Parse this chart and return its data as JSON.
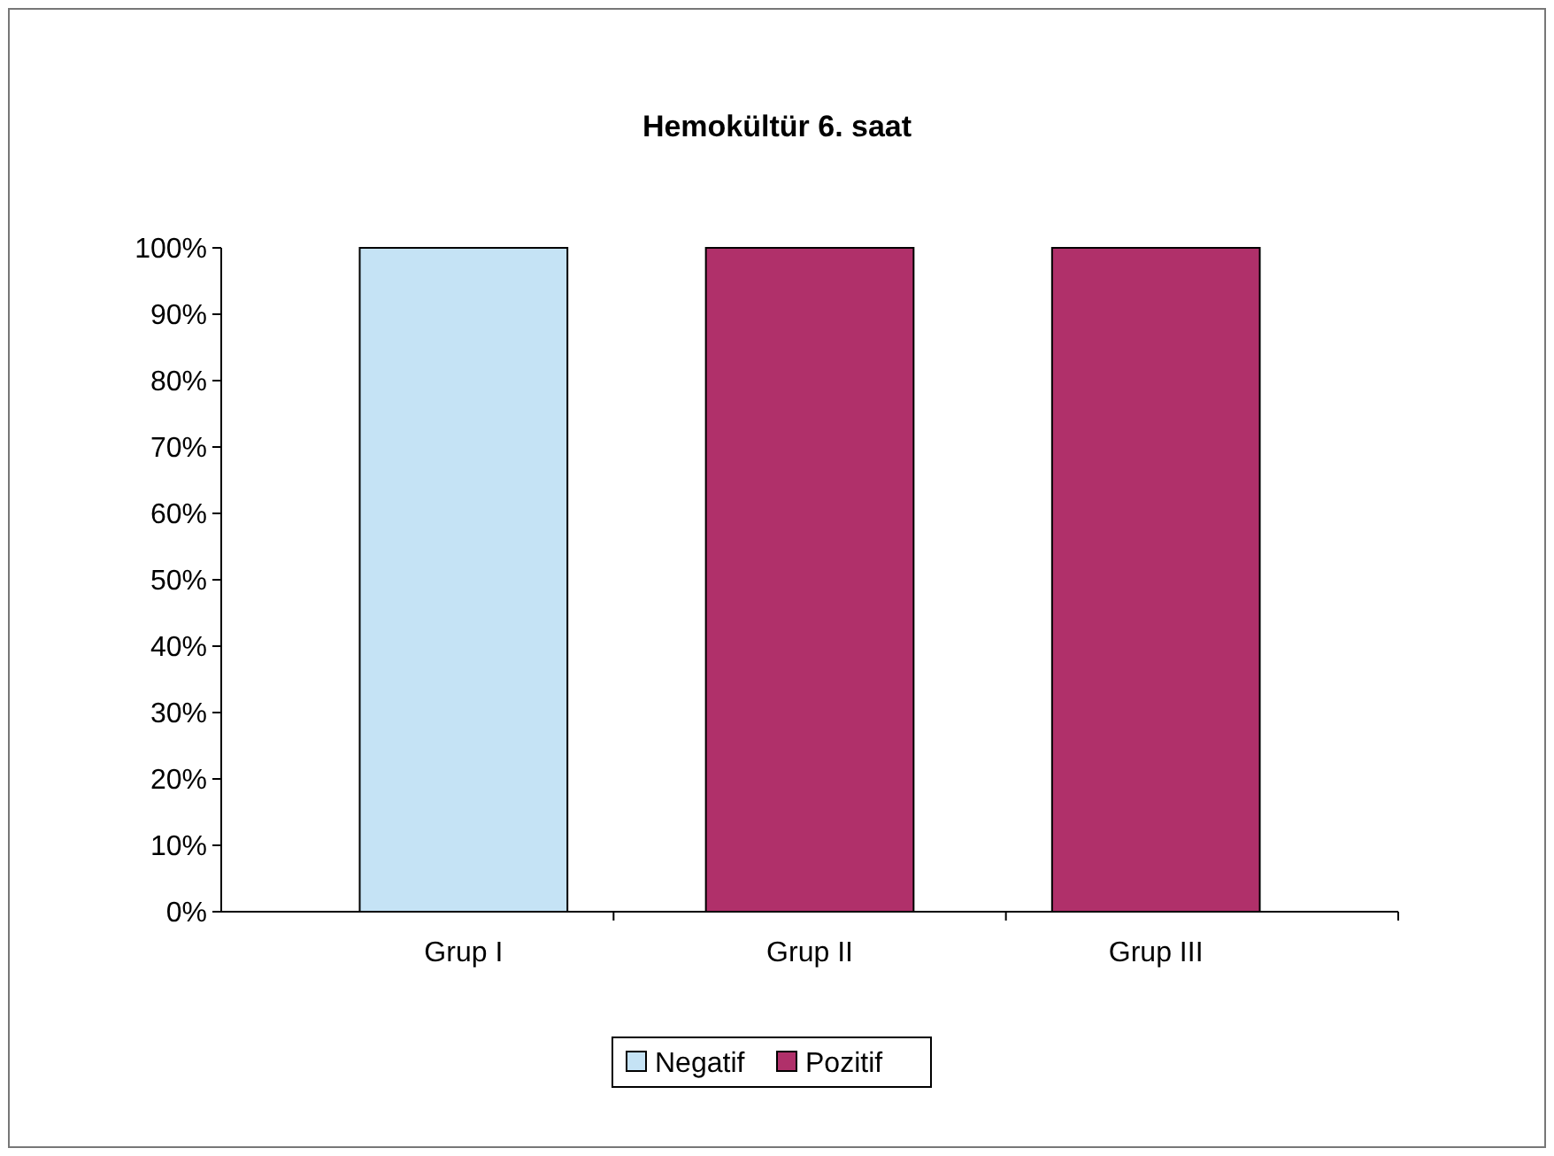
{
  "chart_data": {
    "type": "bar",
    "title": "Hemokültür 6. saat",
    "categories": [
      "Grup I",
      "Grup II",
      "Grup III"
    ],
    "stacked": true,
    "series": [
      {
        "name": "Negatif",
        "color": "#c5e3f5",
        "values": [
          100,
          0,
          0
        ]
      },
      {
        "name": "Pozitif",
        "color": "#b0306a",
        "values": [
          0,
          100,
          100
        ]
      }
    ],
    "ylim": [
      0,
      100
    ],
    "yticks": [
      {
        "value": 0,
        "label": "0%"
      },
      {
        "value": 10,
        "label": "10%"
      },
      {
        "value": 20,
        "label": "20%"
      },
      {
        "value": 30,
        "label": "30%"
      },
      {
        "value": 40,
        "label": "40%"
      },
      {
        "value": 50,
        "label": "50%"
      },
      {
        "value": 60,
        "label": "60%"
      },
      {
        "value": 70,
        "label": "70%"
      },
      {
        "value": 80,
        "label": "80%"
      },
      {
        "value": 90,
        "label": "90%"
      },
      {
        "value": 100,
        "label": "100%"
      }
    ],
    "legend": "bottom"
  }
}
